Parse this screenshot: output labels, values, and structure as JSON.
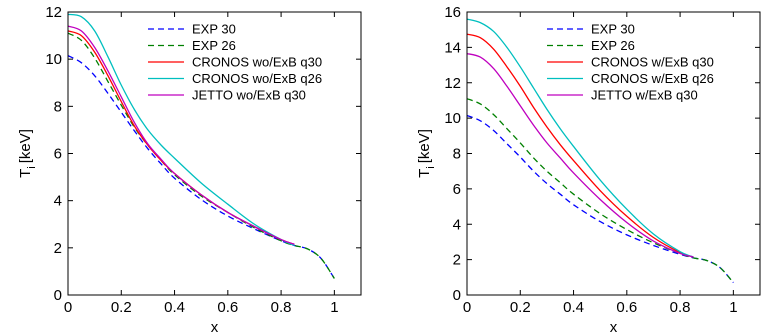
{
  "chart_data": [
    {
      "type": "line",
      "xlabel": "x",
      "ylabel": "T",
      "ylabel_sub": "i",
      "ylabel_unit": "[keV]",
      "xlim": [
        0,
        1.1
      ],
      "ylim": [
        0,
        12
      ],
      "xticks": [
        0,
        0.2,
        0.4,
        0.6,
        0.8,
        1
      ],
      "xtick_labels": [
        "0",
        "0.2",
        "0.4",
        "0.6",
        "0.8",
        "1"
      ],
      "yticks": [
        0,
        2,
        4,
        6,
        8,
        10,
        12
      ],
      "ytick_labels": [
        "0",
        "2",
        "4",
        "6",
        "8",
        "10",
        "12"
      ],
      "grid": false,
      "legend_position": "top-right",
      "series": [
        {
          "name": "EXP 30",
          "color": "#0000ff",
          "dash": true,
          "x": [
            0,
            0.05,
            0.1,
            0.15,
            0.2,
            0.25,
            0.3,
            0.35,
            0.4,
            0.5,
            0.6,
            0.7,
            0.8,
            0.85,
            0.9,
            0.95,
            1.0
          ],
          "y": [
            10.15,
            9.85,
            9.3,
            8.55,
            7.75,
            6.95,
            6.2,
            5.55,
            4.95,
            4.05,
            3.35,
            2.8,
            2.3,
            2.1,
            1.95,
            1.55,
            0.7
          ]
        },
        {
          "name": "EXP 26",
          "color": "#008000",
          "dash": true,
          "x": [
            0,
            0.05,
            0.1,
            0.15,
            0.2,
            0.25,
            0.3,
            0.35,
            0.4,
            0.5,
            0.6,
            0.7,
            0.8,
            0.85,
            0.9,
            0.95,
            1.0
          ],
          "y": [
            11.1,
            10.8,
            10.05,
            9.05,
            8.05,
            7.1,
            6.35,
            5.7,
            5.1,
            4.2,
            3.5,
            2.85,
            2.3,
            2.1,
            1.95,
            1.55,
            0.7
          ]
        },
        {
          "name": "CRONOS wo/ExB q30",
          "color": "#ff0000",
          "dash": false,
          "x": [
            0,
            0.05,
            0.1,
            0.15,
            0.2,
            0.25,
            0.3,
            0.35,
            0.4,
            0.5,
            0.6,
            0.7,
            0.8,
            0.85
          ],
          "y": [
            11.2,
            11.0,
            10.3,
            9.3,
            8.2,
            7.15,
            6.35,
            5.7,
            5.15,
            4.25,
            3.5,
            2.9,
            2.35,
            2.15
          ]
        },
        {
          "name": "CRONOS wo/ExB q26",
          "color": "#00bfbf",
          "dash": false,
          "x": [
            0,
            0.05,
            0.1,
            0.15,
            0.2,
            0.25,
            0.3,
            0.35,
            0.4,
            0.5,
            0.6,
            0.7,
            0.8,
            0.85
          ],
          "y": [
            11.9,
            11.8,
            11.2,
            10.1,
            8.9,
            7.85,
            7.0,
            6.35,
            5.8,
            4.75,
            3.85,
            3.0,
            2.35,
            2.1
          ]
        },
        {
          "name": "JETTO wo/ExB q30",
          "color": "#bf00bf",
          "dash": false,
          "x": [
            0,
            0.05,
            0.1,
            0.15,
            0.2,
            0.25,
            0.3,
            0.35,
            0.4,
            0.5,
            0.6,
            0.7,
            0.8,
            0.85
          ],
          "y": [
            11.4,
            11.2,
            10.5,
            9.5,
            8.4,
            7.3,
            6.4,
            5.75,
            5.15,
            4.25,
            3.5,
            2.9,
            2.35,
            2.15
          ]
        }
      ]
    },
    {
      "type": "line",
      "xlabel": "x",
      "ylabel": "T",
      "ylabel_sub": "i",
      "ylabel_unit": "[keV]",
      "xlim": [
        0,
        1.1
      ],
      "ylim": [
        0,
        16
      ],
      "xticks": [
        0,
        0.2,
        0.4,
        0.6,
        0.8,
        1
      ],
      "xtick_labels": [
        "0",
        "0.2",
        "0.4",
        "0.6",
        "0.8",
        "1"
      ],
      "yticks": [
        0,
        2,
        4,
        6,
        8,
        10,
        12,
        14,
        16
      ],
      "ytick_labels": [
        "0",
        "2",
        "4",
        "6",
        "8",
        "10",
        "12",
        "14",
        "16"
      ],
      "grid": false,
      "legend_position": "top-right",
      "series": [
        {
          "name": "EXP 30",
          "color": "#0000ff",
          "dash": true,
          "x": [
            0,
            0.05,
            0.1,
            0.15,
            0.2,
            0.25,
            0.3,
            0.35,
            0.4,
            0.5,
            0.6,
            0.7,
            0.8,
            0.85,
            0.9,
            0.95,
            1.0
          ],
          "y": [
            10.15,
            9.85,
            9.3,
            8.55,
            7.8,
            7.0,
            6.3,
            5.7,
            5.1,
            4.15,
            3.4,
            2.8,
            2.3,
            2.1,
            1.95,
            1.55,
            0.7
          ]
        },
        {
          "name": "EXP 26",
          "color": "#008000",
          "dash": true,
          "x": [
            0,
            0.05,
            0.1,
            0.15,
            0.2,
            0.25,
            0.3,
            0.35,
            0.4,
            0.5,
            0.6,
            0.7,
            0.8,
            0.85,
            0.9,
            0.95,
            1.0
          ],
          "y": [
            11.1,
            10.8,
            10.2,
            9.4,
            8.6,
            7.75,
            7.0,
            6.35,
            5.7,
            4.6,
            3.7,
            2.95,
            2.35,
            2.1,
            1.95,
            1.55,
            0.7
          ]
        },
        {
          "name": "CRONOS w/ExB q30",
          "color": "#ff0000",
          "dash": false,
          "x": [
            0,
            0.05,
            0.1,
            0.15,
            0.2,
            0.25,
            0.3,
            0.35,
            0.4,
            0.5,
            0.6,
            0.7,
            0.8,
            0.85
          ],
          "y": [
            14.75,
            14.55,
            13.9,
            12.9,
            11.8,
            10.6,
            9.5,
            8.5,
            7.6,
            5.9,
            4.45,
            3.25,
            2.4,
            2.15
          ]
        },
        {
          "name": "CRONOS w/ExB q26",
          "color": "#00bfbf",
          "dash": false,
          "x": [
            0,
            0.05,
            0.1,
            0.15,
            0.2,
            0.25,
            0.3,
            0.35,
            0.4,
            0.5,
            0.6,
            0.7,
            0.8,
            0.85
          ],
          "y": [
            15.6,
            15.4,
            14.9,
            14.0,
            12.9,
            11.7,
            10.5,
            9.4,
            8.4,
            6.5,
            4.85,
            3.45,
            2.45,
            2.15
          ]
        },
        {
          "name": "JETTO w/ExB q30",
          "color": "#bf00bf",
          "dash": false,
          "x": [
            0,
            0.05,
            0.1,
            0.15,
            0.2,
            0.25,
            0.3,
            0.35,
            0.4,
            0.5,
            0.6,
            0.7,
            0.8,
            0.85
          ],
          "y": [
            13.65,
            13.45,
            12.8,
            11.8,
            10.7,
            9.6,
            8.6,
            7.75,
            6.9,
            5.4,
            4.1,
            3.05,
            2.35,
            2.15
          ]
        }
      ]
    }
  ]
}
